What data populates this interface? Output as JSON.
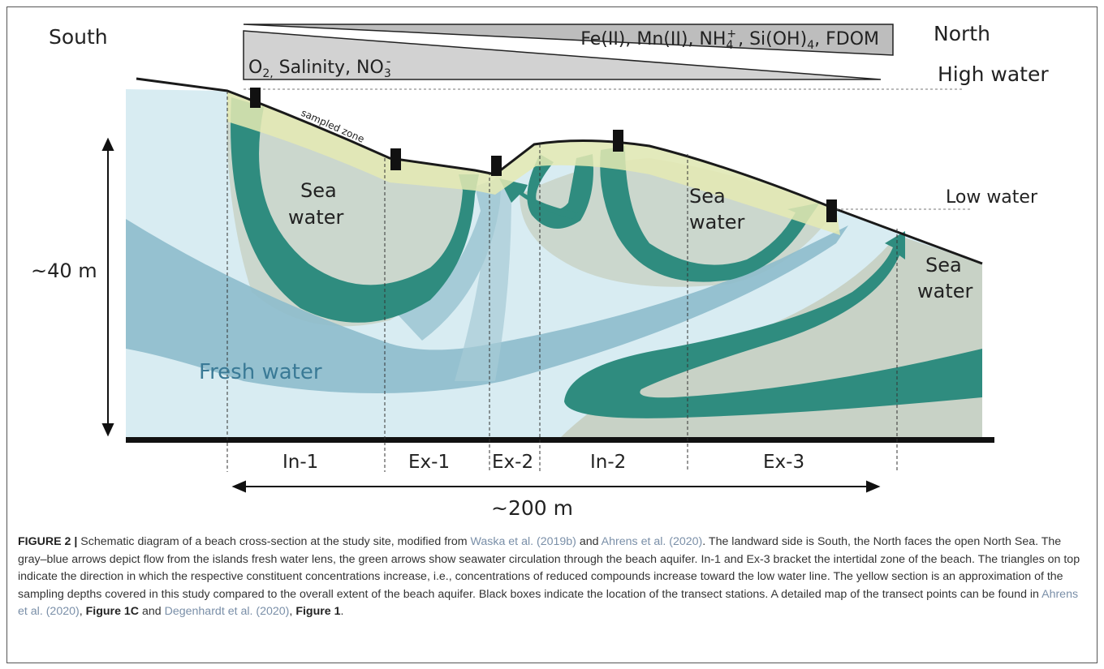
{
  "diagram": {
    "directions": {
      "south": "South",
      "north": "North"
    },
    "triangle_top": {
      "left_prefix": "Fe(II), Mn(II), NH",
      "nh_sub": "4",
      "nh_sup": "+",
      "right_suffix": ", Si(OH)",
      "si_sub": "4",
      "end": ", FDOM"
    },
    "triangle_bottom": {
      "o2": "O",
      "o2_sub": "2,",
      "salinity": " Salinity, NO",
      "no3_sub": "3",
      "no3_sup": "-"
    },
    "water_levels": {
      "high": "High water",
      "low": "Low water"
    },
    "sampled_zone": "sampled zone",
    "sea_water_1": [
      "Sea",
      "water"
    ],
    "sea_water_2": [
      "Sea",
      "water"
    ],
    "sea_water_3": [
      "Sea",
      "water"
    ],
    "fresh_water": "Fresh water",
    "depth_label": "~40 m",
    "width_label": "~200 m",
    "zones": [
      "In-1",
      "Ex-1",
      "Ex-2",
      "In-2",
      "Ex-3"
    ]
  },
  "caption": {
    "figure_label": "FIGURE 2 |",
    "t1": " Schematic diagram of a beach cross-section at the study site, modified from ",
    "ref1": "Waska et al. (2019b)",
    "t2": " and ",
    "ref2": "Ahrens et al. (2020)",
    "t3": ". The landward side is South, the North faces the open North Sea. The gray–blue arrows depict flow from the islands fresh water lens, the green arrows show seawater circulation through the beach aquifer. In-1 and Ex-3 bracket the intertidal zone of the beach. The triangles on top indicate the direction in which the respective constituent concentrations increase, i.e., concentrations of reduced compounds increase toward the low water line. The yellow section is an approximation of the sampling depths covered in this study compared to the overall extent of the beach aquifer. Black boxes indicate the location of the transect stations. A detailed map of the transect points can be found in ",
    "ref3": "Ahrens et al. (2020)",
    "t4": ", ",
    "fig1c": "Figure 1C",
    "t5": " and ",
    "ref4": "Degenhardt et al. (2020)",
    "t6": ", ",
    "fig1": "Figure 1",
    "t7": "."
  },
  "colors": {
    "light_blue": "#d6ebf1",
    "sea_gray": "#c9d3c6",
    "blue_arrow": "#8fbccb",
    "green_arrow": "#2f8f80",
    "yellow_zone": "#e6ebb6",
    "triangle_fill": "#bfbfbf"
  }
}
